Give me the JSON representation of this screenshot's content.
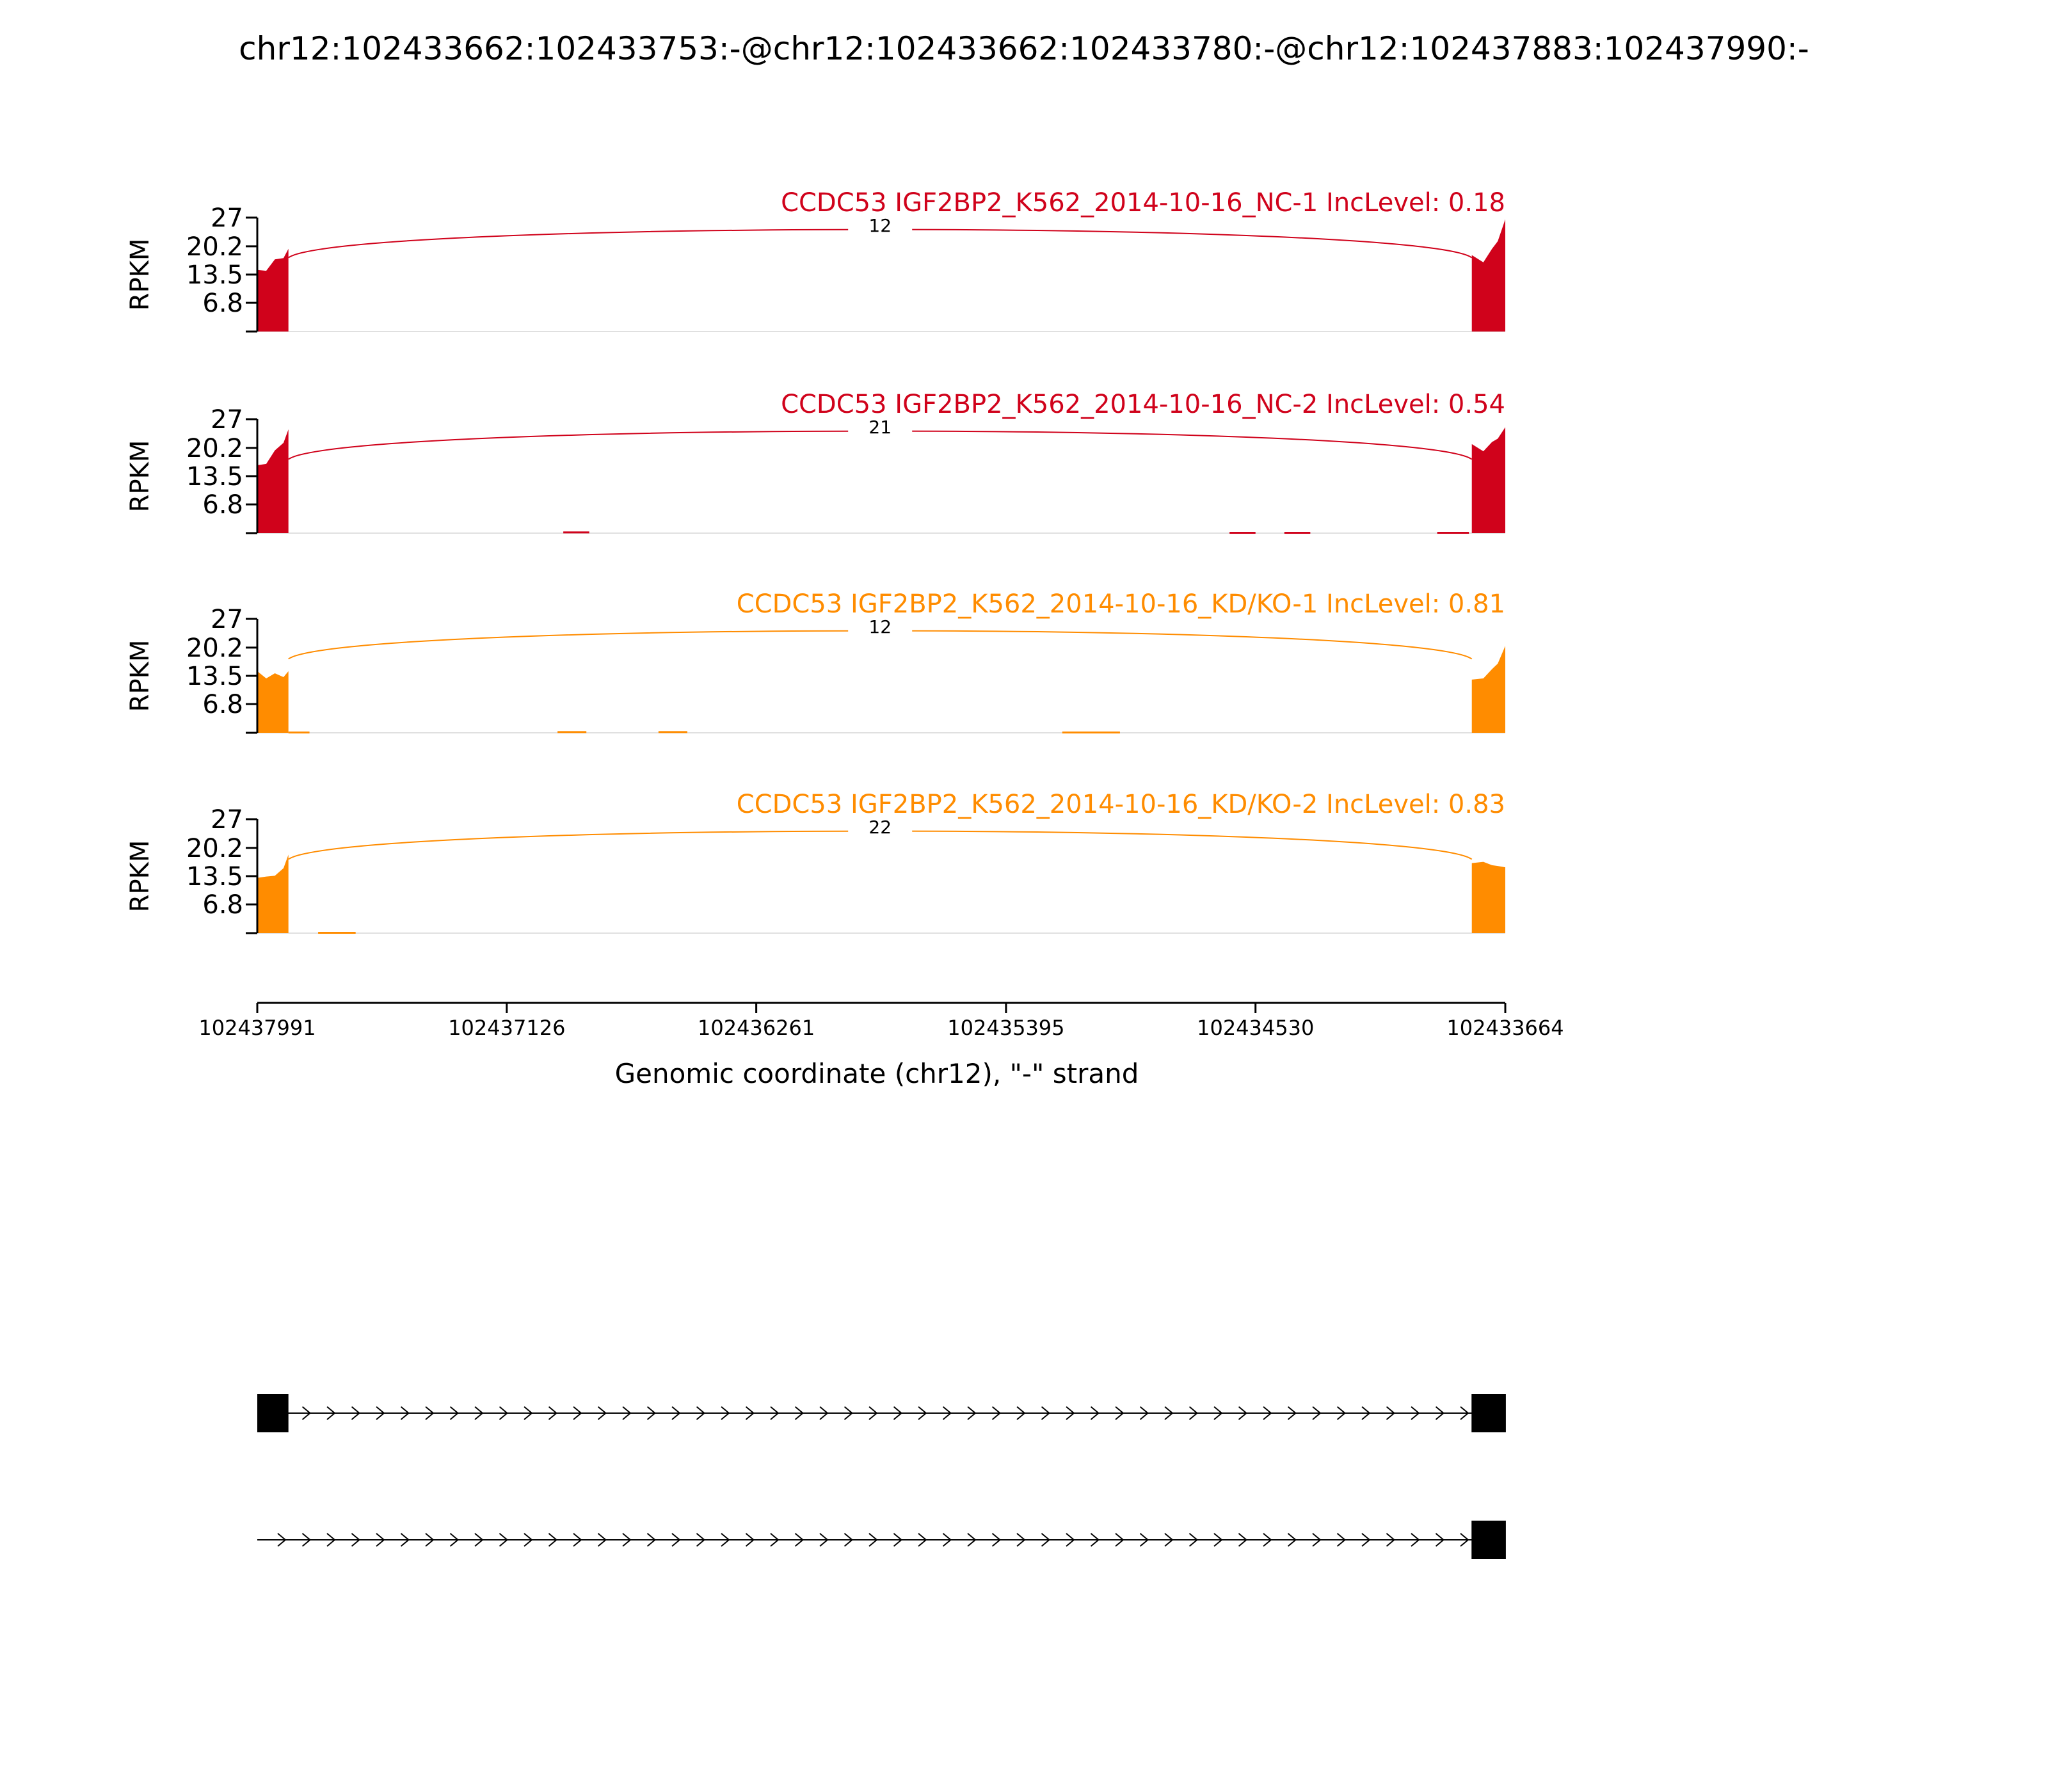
{
  "chart_data": {
    "type": "area",
    "title": "chr12:102433662:102433753:-@chr12:102433662:102433780:-@chr12:102437883:102437990:-",
    "xlabel": "Genomic coordinate (chr12), \"-\" strand",
    "ylabel": "RPKM",
    "ylim": [
      0,
      27
    ],
    "yticks": [
      "27",
      "20.2",
      "13.5",
      "6.8"
    ],
    "x_reversed": true,
    "xlim": [
      102437991,
      102433664
    ],
    "xticks": [
      "102437991",
      "102437126",
      "102436261",
      "102435395",
      "102434530",
      "102433664"
    ],
    "exons": [
      {
        "start": 102437883,
        "end": 102437990
      },
      {
        "start": 102433662,
        "end": 102433780
      }
    ],
    "panels": [
      {
        "label": "CCDC53 IGF2BP2_K562_2014-10-16_NC-1 IncLevel: 0.18",
        "color": "#d0021b",
        "junction": {
          "from": 102437883,
          "to": 102433780,
          "count": "12"
        },
        "coverage": [
          {
            "x": 102437991,
            "y": 14.0
          },
          {
            "x": 102437960,
            "y": 15.0
          },
          {
            "x": 102437930,
            "y": 16.5
          },
          {
            "x": 102437900,
            "y": 18.0
          },
          {
            "x": 102437883,
            "y": 19.0
          },
          {
            "x": 102433780,
            "y": 17.5
          },
          {
            "x": 102433740,
            "y": 17.0
          },
          {
            "x": 102433710,
            "y": 19.0
          },
          {
            "x": 102433690,
            "y": 22.0
          },
          {
            "x": 102433664,
            "y": 26.0
          }
        ],
        "islands": []
      },
      {
        "label": "CCDC53 IGF2BP2_K562_2014-10-16_NC-2 IncLevel: 0.54",
        "color": "#d0021b",
        "junction": {
          "from": 102437883,
          "to": 102433780,
          "count": "21"
        },
        "coverage": [
          {
            "x": 102437991,
            "y": 15.5
          },
          {
            "x": 102437960,
            "y": 17.0
          },
          {
            "x": 102437930,
            "y": 19.0
          },
          {
            "x": 102437900,
            "y": 22.0
          },
          {
            "x": 102437883,
            "y": 24.0
          },
          {
            "x": 102433780,
            "y": 20.5
          },
          {
            "x": 102433740,
            "y": 20.0
          },
          {
            "x": 102433710,
            "y": 21.0
          },
          {
            "x": 102433690,
            "y": 23.0
          },
          {
            "x": 102433664,
            "y": 24.5
          }
        ],
        "islands": [
          {
            "from": 102436930,
            "to": 102436840,
            "y": 0.4
          },
          {
            "from": 102434620,
            "to": 102434530,
            "y": 0.3
          },
          {
            "from": 102434430,
            "to": 102434340,
            "y": 0.3
          },
          {
            "from": 102433900,
            "to": 102433790,
            "y": 0.3
          }
        ]
      },
      {
        "label": "CCDC53 IGF2BP2_K562_2014-10-16_KD/KO-1 IncLevel: 0.81",
        "color": "#ff8c00",
        "junction": {
          "from": 102437883,
          "to": 102433780,
          "count": "12"
        },
        "coverage": [
          {
            "x": 102437991,
            "y": 14.0
          },
          {
            "x": 102437960,
            "y": 13.5
          },
          {
            "x": 102437930,
            "y": 13.5
          },
          {
            "x": 102437900,
            "y": 13.8
          },
          {
            "x": 102437883,
            "y": 14.0
          },
          {
            "x": 102433780,
            "y": 12.0
          },
          {
            "x": 102433740,
            "y": 13.5
          },
          {
            "x": 102433710,
            "y": 14.5
          },
          {
            "x": 102433690,
            "y": 17.0
          },
          {
            "x": 102433664,
            "y": 20.0
          }
        ],
        "islands": [
          {
            "from": 102437883,
            "to": 102437810,
            "y": 0.3
          },
          {
            "from": 102436950,
            "to": 102436850,
            "y": 0.4
          },
          {
            "from": 102436600,
            "to": 102436500,
            "y": 0.4
          },
          {
            "from": 102435200,
            "to": 102435000,
            "y": 0.3
          }
        ]
      },
      {
        "label": "CCDC53 IGF2BP2_K562_2014-10-16_KD/KO-2 IncLevel: 0.83",
        "color": "#ff8c00",
        "junction": {
          "from": 102437883,
          "to": 102433780,
          "count": "22"
        },
        "coverage": [
          {
            "x": 102437991,
            "y": 12.5
          },
          {
            "x": 102437960,
            "y": 14.0
          },
          {
            "x": 102437930,
            "y": 13.0
          },
          {
            "x": 102437900,
            "y": 16.0
          },
          {
            "x": 102437883,
            "y": 18.0
          },
          {
            "x": 102433780,
            "y": 16.0
          },
          {
            "x": 102433740,
            "y": 17.5
          },
          {
            "x": 102433710,
            "y": 15.5
          },
          {
            "x": 102433690,
            "y": 16.5
          },
          {
            "x": 102433664,
            "y": 15.0
          }
        ],
        "islands": [
          {
            "from": 102437780,
            "to": 102437650,
            "y": 0.3
          }
        ]
      }
    ],
    "isoforms": [
      {
        "exons": [
          {
            "start": 102437883,
            "end": 102437990
          },
          {
            "start": 102433662,
            "end": 102433780
          }
        ]
      },
      {
        "exons": [
          {
            "start": 102433662,
            "end": 102433780
          }
        ]
      }
    ]
  }
}
